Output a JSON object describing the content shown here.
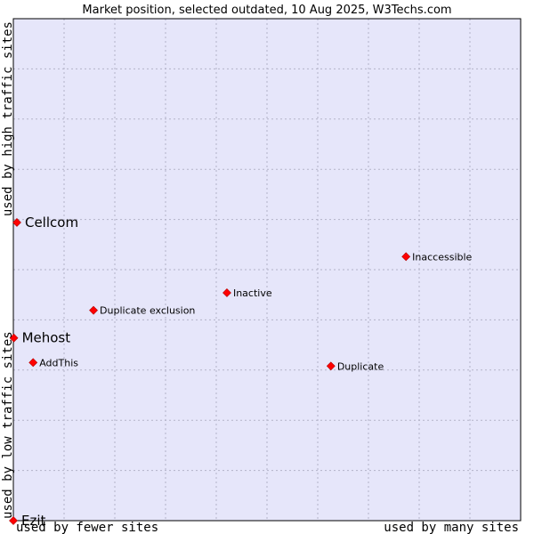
{
  "chart_data": {
    "type": "scatter",
    "title": "Market position, selected outdated, 10 Aug 2025, W3Techs.com",
    "xlabel_left": "used by fewer sites",
    "xlabel_right": "used by many sites",
    "ylabel_top": "used by high traffic sites",
    "ylabel_bottom": "used by low traffic sites",
    "xlim": [
      0,
      100
    ],
    "ylim": [
      0,
      100
    ],
    "grid": true,
    "colors": {
      "plot_bg": "#e6e6fa",
      "grid": "#b3b3c8",
      "marker": "#ff0000",
      "frame": "#000000"
    },
    "points": [
      {
        "label": "Inaccessible",
        "x": 77.4,
        "y": 52.6,
        "highlight": false
      },
      {
        "label": "Inactive",
        "x": 42.1,
        "y": 45.4,
        "highlight": false
      },
      {
        "label": "Duplicate exclusion",
        "x": 15.8,
        "y": 41.9,
        "highlight": false
      },
      {
        "label": "AddThis",
        "x": 3.9,
        "y": 31.5,
        "highlight": false
      },
      {
        "label": "Duplicate",
        "x": 62.6,
        "y": 30.8,
        "highlight": false
      },
      {
        "label": "Cellcom",
        "x": 0.7,
        "y": 59.4,
        "highlight": true
      },
      {
        "label": "Mehost",
        "x": 0.1,
        "y": 36.4,
        "highlight": true
      },
      {
        "label": "Ezit",
        "x": 0.0,
        "y": 0.0,
        "highlight": true
      }
    ]
  }
}
